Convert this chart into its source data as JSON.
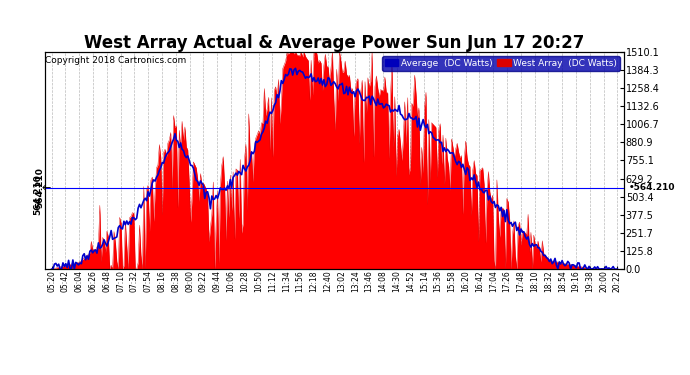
{
  "title": "West Array Actual & Average Power Sun Jun 17 20:27",
  "copyright": "Copyright 2018 Cartronics.com",
  "y_ticks": [
    0.0,
    125.8,
    251.7,
    377.5,
    503.4,
    629.2,
    755.1,
    880.9,
    1006.7,
    1132.6,
    1258.4,
    1384.3,
    1510.1
  ],
  "ymax": 1510.1,
  "ymin": 0.0,
  "annotation_value": 564.21,
  "legend_labels": [
    "Average  (DC Watts)",
    "West Array  (DC Watts)"
  ],
  "legend_colors": [
    "#0000bb",
    "#dd0000"
  ],
  "fill_color": "#ff0000",
  "line_color": "#dd0000",
  "avg_line_color": "#0000cc",
  "background_color": "#ffffff",
  "grid_color": "#bbbbbb",
  "title_fontsize": 12,
  "tick_fontsize": 7,
  "x_labels": [
    "05:20",
    "05:42",
    "06:04",
    "06:26",
    "06:48",
    "07:10",
    "07:32",
    "07:54",
    "08:16",
    "08:38",
    "09:00",
    "09:22",
    "09:44",
    "10:06",
    "10:28",
    "10:50",
    "11:12",
    "11:34",
    "11:56",
    "12:18",
    "12:40",
    "13:02",
    "13:24",
    "13:46",
    "14:08",
    "14:30",
    "14:52",
    "15:14",
    "15:36",
    "15:58",
    "16:20",
    "16:42",
    "17:04",
    "17:26",
    "17:48",
    "18:10",
    "18:32",
    "18:54",
    "19:16",
    "19:38",
    "20:00",
    "20:22"
  ],
  "n_points": 400
}
